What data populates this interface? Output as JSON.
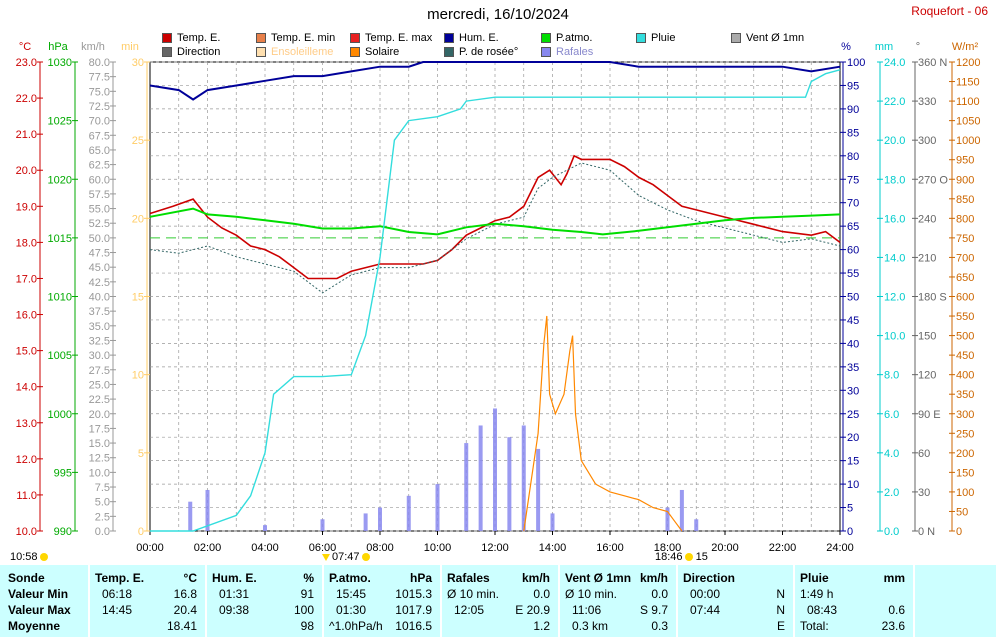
{
  "title": "mercredi, 16/10/2024",
  "station": "Roquefort - 06",
  "legend": [
    {
      "label": "Temp. E.",
      "color": "#cc0000"
    },
    {
      "label": "Temp. E. min",
      "color": "#e8804a"
    },
    {
      "label": "Temp. E. max",
      "color": "#e82020"
    },
    {
      "label": "Hum. E.",
      "color": "#000099"
    },
    {
      "label": "P.atmo.",
      "color": "#00dd00"
    },
    {
      "label": "Pluie",
      "color": "#33dddd"
    },
    {
      "label": "Vent Ø 1mn",
      "color": "#aaaaaa"
    },
    {
      "label": "Direction",
      "color": "#666666"
    },
    {
      "label": "Ensoleilleme",
      "color": "#ffe0b0"
    },
    {
      "label": "Solaire",
      "color": "#ff8800"
    },
    {
      "label": "P. de rosée°",
      "color": "#336666"
    },
    {
      "label": "Rafales",
      "color": "#8888ee"
    }
  ],
  "axes": {
    "temp": {
      "unit": "°C",
      "color": "#cc0000",
      "ticks": [
        "23.0",
        "22.0",
        "21.0",
        "20.0",
        "19.0",
        "18.0",
        "17.0",
        "16.0",
        "15.0",
        "14.0",
        "13.0",
        "12.0",
        "11.0",
        "10.0"
      ]
    },
    "pressure": {
      "unit": "hPa",
      "color": "#00aa00",
      "ticks": [
        "1030",
        "1025",
        "1020",
        "1015",
        "1010",
        "1005",
        "1000",
        "995",
        "990"
      ]
    },
    "wind": {
      "unit": "km/h",
      "color": "#999999",
      "ticks": [
        "80.0",
        "77.5",
        "75.0",
        "72.5",
        "70.0",
        "67.5",
        "65.0",
        "62.5",
        "60.0",
        "57.5",
        "55.0",
        "52.5",
        "50.0",
        "47.5",
        "45.0",
        "42.5",
        "40.0",
        "37.5",
        "35.0",
        "32.5",
        "30.0",
        "27.5",
        "25.0",
        "22.5",
        "20.0",
        "17.5",
        "15.0",
        "12.5",
        "10.0",
        "7.5",
        "5.0",
        "2.5",
        "0.0"
      ]
    },
    "sunshine": {
      "unit": "min",
      "color": "#ffcc66",
      "ticks": [
        "30",
        "25",
        "20",
        "15",
        "10",
        "5",
        "0"
      ]
    },
    "humidity": {
      "unit": "%",
      "color": "#000099",
      "ticks": [
        "100",
        "95",
        "90",
        "85",
        "80",
        "75",
        "70",
        "65",
        "60",
        "55",
        "50",
        "45",
        "40",
        "35",
        "30",
        "25",
        "20",
        "15",
        "10",
        "5",
        "0"
      ]
    },
    "rain": {
      "unit": "mm",
      "color": "#00cccc",
      "ticks": [
        "24.0",
        "22.0",
        "20.0",
        "18.0",
        "16.0",
        "14.0",
        "12.0",
        "10.0",
        "8.0",
        "6.0",
        "4.0",
        "2.0",
        "0.0"
      ]
    },
    "direction": {
      "unit": "°",
      "color": "#666666",
      "ticks": [
        "360 N",
        "330",
        "300",
        "270 O",
        "240",
        "210",
        "180 S",
        "150",
        "120",
        "90 E",
        "60",
        "30",
        "0 N"
      ]
    },
    "solar": {
      "unit": "W/m²",
      "color": "#cc6600",
      "ticks": [
        "1200",
        "1150",
        "1100",
        "1050",
        "1000",
        "950",
        "900",
        "850",
        "800",
        "750",
        "700",
        "650",
        "600",
        "550",
        "500",
        "450",
        "400",
        "350",
        "300",
        "250",
        "200",
        "150",
        "100",
        "50",
        "0"
      ]
    },
    "time": [
      "00:00",
      "02:00",
      "04:00",
      "06:00",
      "08:00",
      "10:00",
      "12:00",
      "14:00",
      "16:00",
      "18:00",
      "20:00",
      "22:00",
      "24:00"
    ]
  },
  "sun": {
    "left_label": "10:58",
    "sunrise": "07:47",
    "sunset": "18:46",
    "daylight": "15"
  },
  "chart_data": {
    "type": "line",
    "x_unit": "hours",
    "xlim": [
      0,
      24
    ],
    "series": [
      {
        "name": "Temp. E.",
        "axis": "temp",
        "points": [
          [
            0,
            18.8
          ],
          [
            0.8,
            19.0
          ],
          [
            1.5,
            19.2
          ],
          [
            2,
            18.7
          ],
          [
            2.5,
            18.4
          ],
          [
            3,
            18.2
          ],
          [
            3.5,
            17.9
          ],
          [
            4,
            17.8
          ],
          [
            4.5,
            17.6
          ],
          [
            5,
            17.3
          ],
          [
            5.5,
            17.0
          ],
          [
            6,
            17.0
          ],
          [
            6.5,
            17.0
          ],
          [
            7,
            17.2
          ],
          [
            8,
            17.4
          ],
          [
            9,
            17.4
          ],
          [
            9.5,
            17.4
          ],
          [
            10,
            17.5
          ],
          [
            10.5,
            17.8
          ],
          [
            11,
            18.2
          ],
          [
            11.5,
            18.4
          ],
          [
            12,
            18.6
          ],
          [
            12.5,
            18.7
          ],
          [
            13,
            19.0
          ],
          [
            13.5,
            19.8
          ],
          [
            13.9,
            20.0
          ],
          [
            14.3,
            19.6
          ],
          [
            14.5,
            19.9
          ],
          [
            14.75,
            20.4
          ],
          [
            15,
            20.3
          ],
          [
            16,
            20.3
          ],
          [
            16.5,
            20.1
          ],
          [
            17,
            19.8
          ],
          [
            17.5,
            19.6
          ],
          [
            18,
            19.3
          ],
          [
            18.5,
            19.0
          ],
          [
            19,
            18.9
          ],
          [
            19.5,
            18.8
          ],
          [
            20,
            18.7
          ],
          [
            21,
            18.5
          ],
          [
            22,
            18.3
          ],
          [
            23,
            18.2
          ],
          [
            23.5,
            18.3
          ],
          [
            24,
            18.0
          ]
        ]
      },
      {
        "name": "P. de rosée°",
        "axis": "temp",
        "points": [
          [
            0,
            17.8
          ],
          [
            1,
            17.7
          ],
          [
            2,
            17.9
          ],
          [
            3,
            17.6
          ],
          [
            4,
            17.4
          ],
          [
            5,
            17.2
          ],
          [
            6,
            16.6
          ],
          [
            7,
            17.1
          ],
          [
            8,
            17.3
          ],
          [
            9,
            17.3
          ],
          [
            10,
            17.5
          ],
          [
            11,
            18.1
          ],
          [
            12,
            18.5
          ],
          [
            13,
            18.7
          ],
          [
            13.5,
            19.5
          ],
          [
            14,
            19.8
          ],
          [
            15,
            20.2
          ],
          [
            16,
            20.0
          ],
          [
            17,
            19.3
          ],
          [
            18,
            18.9
          ],
          [
            19,
            18.6
          ],
          [
            20,
            18.4
          ],
          [
            21,
            18.2
          ],
          [
            22,
            18.0
          ],
          [
            23,
            18.1
          ],
          [
            24,
            17.9
          ]
        ]
      },
      {
        "name": "Hum. E.",
        "axis": "humidity",
        "points": [
          [
            0,
            95
          ],
          [
            1,
            94
          ],
          [
            1.5,
            92
          ],
          [
            2,
            94
          ],
          [
            3,
            95
          ],
          [
            4,
            96
          ],
          [
            5,
            97
          ],
          [
            6,
            97
          ],
          [
            7,
            98
          ],
          [
            8,
            99
          ],
          [
            9,
            99
          ],
          [
            9.5,
            100
          ],
          [
            12,
            100
          ],
          [
            14,
            100
          ],
          [
            16,
            100
          ],
          [
            17,
            99
          ],
          [
            18,
            99
          ],
          [
            20,
            99
          ],
          [
            22,
            99
          ],
          [
            23,
            98
          ],
          [
            24,
            99
          ]
        ]
      },
      {
        "name": "P.atmo.",
        "axis": "pressure",
        "points": [
          [
            0,
            1016.8
          ],
          [
            1.5,
            1017.5
          ],
          [
            2,
            1017.0
          ],
          [
            3,
            1016.8
          ],
          [
            4,
            1016.5
          ],
          [
            5,
            1016.2
          ],
          [
            6,
            1015.8
          ],
          [
            7,
            1015.8
          ],
          [
            8,
            1016.0
          ],
          [
            9,
            1015.5
          ],
          [
            10,
            1015.3
          ],
          [
            11,
            1015.9
          ],
          [
            12,
            1016.2
          ],
          [
            13,
            1016.0
          ],
          [
            14,
            1015.7
          ],
          [
            15,
            1015.5
          ],
          [
            15.75,
            1015.3
          ],
          [
            17,
            1015.6
          ],
          [
            18,
            1015.9
          ],
          [
            19,
            1016.2
          ],
          [
            20,
            1016.5
          ],
          [
            21,
            1016.7
          ],
          [
            22,
            1016.8
          ],
          [
            23,
            1016.9
          ],
          [
            24,
            1017.0
          ]
        ]
      },
      {
        "name": "Pluie",
        "axis": "rain",
        "points": [
          [
            0,
            0
          ],
          [
            1.5,
            0
          ],
          [
            3,
            0.8
          ],
          [
            3.5,
            1.8
          ],
          [
            4,
            4.0
          ],
          [
            4.3,
            7.0
          ],
          [
            5,
            7.9
          ],
          [
            6,
            7.9
          ],
          [
            7,
            8.0
          ],
          [
            7.5,
            10.0
          ],
          [
            8,
            14.0
          ],
          [
            8.5,
            20.0
          ],
          [
            9,
            21.0
          ],
          [
            10,
            21.2
          ],
          [
            10.8,
            21.6
          ],
          [
            11,
            22.0
          ],
          [
            12,
            22.2
          ],
          [
            14,
            22.2
          ],
          [
            16,
            22.2
          ],
          [
            18,
            22.2
          ],
          [
            20,
            22.2
          ],
          [
            22,
            22.2
          ],
          [
            22.8,
            22.2
          ],
          [
            23,
            23.0
          ],
          [
            23.5,
            23.4
          ],
          [
            24,
            23.6
          ]
        ]
      },
      {
        "name": "Solaire",
        "axis": "solar",
        "points": [
          [
            13,
            0
          ],
          [
            13.3,
            150
          ],
          [
            13.5,
            250
          ],
          [
            13.7,
            480
          ],
          [
            13.8,
            550
          ],
          [
            13.9,
            350
          ],
          [
            14.1,
            300
          ],
          [
            14.4,
            350
          ],
          [
            14.6,
            460
          ],
          [
            14.7,
            500
          ],
          [
            14.8,
            300
          ],
          [
            15,
            180
          ],
          [
            15.5,
            120
          ],
          [
            16,
            100
          ],
          [
            16.5,
            90
          ],
          [
            17,
            80
          ],
          [
            17.5,
            60
          ],
          [
            18,
            50
          ],
          [
            18.3,
            20
          ],
          [
            18.5,
            0
          ]
        ]
      },
      {
        "name": "Rafales",
        "axis": "wind",
        "points": [
          [
            1.4,
            5
          ],
          [
            2,
            7
          ],
          [
            4,
            1
          ],
          [
            6,
            2
          ],
          [
            7.5,
            3
          ],
          [
            8,
            4
          ],
          [
            9,
            6
          ],
          [
            10,
            8
          ],
          [
            11,
            15
          ],
          [
            11.5,
            18
          ],
          [
            12,
            20.9
          ],
          [
            12.5,
            16
          ],
          [
            13,
            18
          ],
          [
            13.5,
            14
          ],
          [
            14,
            3
          ],
          [
            18,
            4
          ],
          [
            18.5,
            7
          ],
          [
            19,
            2
          ]
        ]
      }
    ],
    "summary": {
      "temp": {
        "header": "Temp. E.",
        "unit": "°C",
        "min_time": "06:18",
        "min": "16.8",
        "max_time": "14:45",
        "max": "20.4",
        "avg": "18.41"
      },
      "hum": {
        "header": "Hum. E.",
        "unit": "%",
        "min_time": "01:31",
        "min": "91",
        "max_time": "09:38",
        "max": "100",
        "avg": "98"
      },
      "patmo": {
        "header": "P.atmo.",
        "unit": "hPa",
        "min_time": "15:45",
        "min": "1015.3",
        "max_time": "01:30",
        "max": "1017.9",
        "avg_label": "^1.0hPa/h",
        "avg": "1016.5"
      },
      "rafales": {
        "header": "Rafales",
        "unit": "km/h",
        "min_label": "Ø 10 min.",
        "min": "0.0",
        "max_time": "12:05",
        "max": "E 20.9",
        "avg": "1.2"
      },
      "vent": {
        "header": "Vent Ø 1mn",
        "unit": "km/h",
        "min_label": "Ø 10 min.",
        "min": "0.0",
        "max_time": "11:06",
        "max": "S 9.7",
        "avg_label": "0.3 km",
        "avg": "0.3"
      },
      "direction": {
        "header": "Direction",
        "min_time": "00:00",
        "min": "N",
        "max_time": "07:44",
        "max": "N",
        "avg": "E"
      },
      "pluie": {
        "header": "Pluie",
        "unit": "mm",
        "min_label": "1:49 h",
        "max_time": "08:43",
        "max": "0.6",
        "avg_label": "Total:",
        "avg": "23.6"
      },
      "rows": {
        "sonde": "Sonde",
        "min": "Valeur Min",
        "max": "Valeur Max",
        "avg": "Moyenne"
      }
    }
  }
}
